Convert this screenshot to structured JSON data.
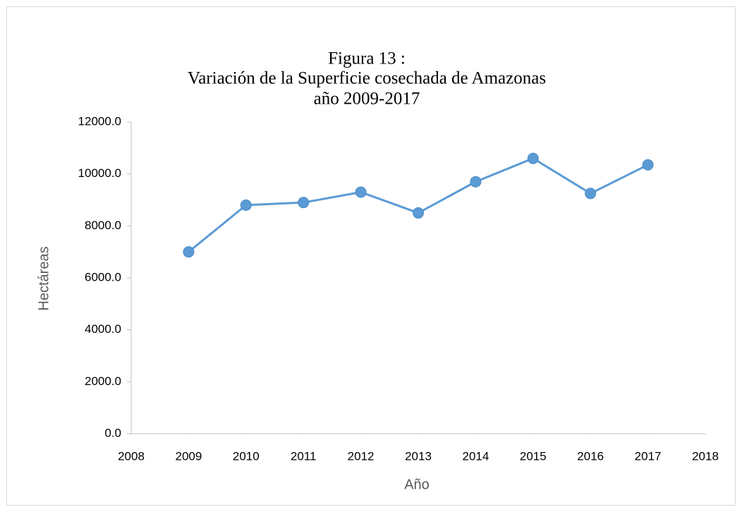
{
  "chart_data": {
    "type": "line",
    "title": [
      "Figura 13 :",
      "Variación de la Superficie cosechada de Amazonas",
      "año 2009-2017"
    ],
    "x_label": "Año",
    "y_label": "Hectáreas",
    "x": [
      2009,
      2010,
      2011,
      2012,
      2013,
      2014,
      2015,
      2016,
      2017
    ],
    "values": [
      7000,
      8800,
      8900,
      9300,
      8500,
      9700,
      10600,
      9250,
      10350
    ],
    "color": "#5b9bd5",
    "xlim": [
      2008,
      2018
    ],
    "xticks": [
      2008,
      2009,
      2010,
      2011,
      2012,
      2013,
      2014,
      2015,
      2016,
      2017,
      2018
    ],
    "ylim": [
      0,
      12000
    ],
    "yticks": [
      {
        "value": 0,
        "label": "0.0"
      },
      {
        "value": 2000,
        "label": "2000.0"
      },
      {
        "value": 4000,
        "label": "4000.0"
      },
      {
        "value": 6000,
        "label": "6000.0"
      },
      {
        "value": 8000,
        "label": "8000.0"
      },
      {
        "value": 10000,
        "label": "10000.0"
      },
      {
        "value": 12000,
        "label": "12000.0"
      }
    ],
    "grid": false
  }
}
